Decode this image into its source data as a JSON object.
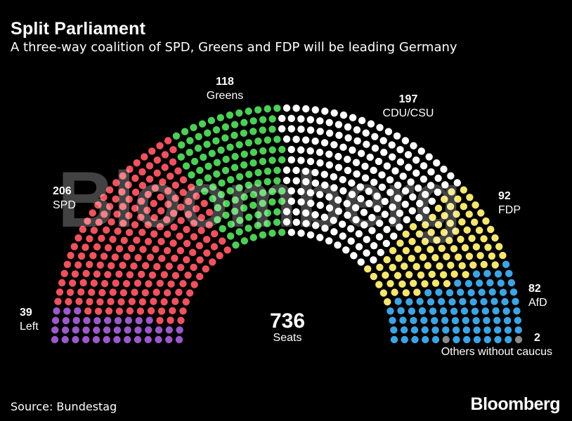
{
  "title": "Split Parliament",
  "subtitle": "A three-way coalition of SPD, Greens and FDP will be leading Germany",
  "source": "Source: Bundestag",
  "logo": "Bloomberg",
  "watermark": "Bloomberg",
  "chart_data": {
    "type": "parliament",
    "total": {
      "value": "736",
      "label": "Seats"
    },
    "parties": [
      {
        "name": "Left",
        "seats": 39,
        "color": "#9b59c9"
      },
      {
        "name": "SPD",
        "seats": 206,
        "color": "#f0525e"
      },
      {
        "name": "Greens",
        "seats": 118,
        "color": "#4ccf56"
      },
      {
        "name": "CDU/CSU",
        "seats": 197,
        "color": "#ffffff"
      },
      {
        "name": "FDP",
        "seats": 92,
        "color": "#f6e66e"
      },
      {
        "name": "AfD",
        "seats": 82,
        "color": "#3da4e4"
      },
      {
        "name": "Others without caucus",
        "seats": 2,
        "color": "#8a8a8a"
      }
    ]
  }
}
